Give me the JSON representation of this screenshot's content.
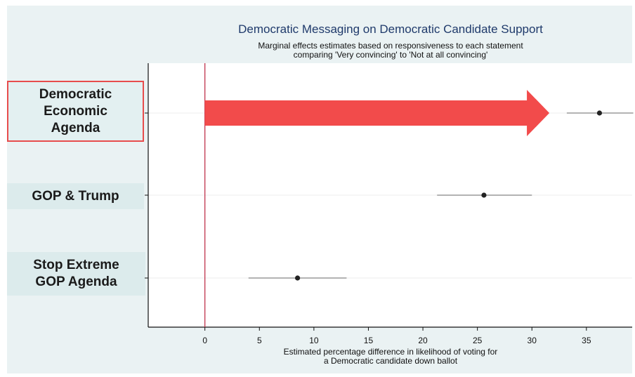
{
  "chart_data": {
    "type": "scatter",
    "title": "Democratic Messaging on Democratic Candidate Support",
    "subtitle": [
      "Marginal effects estimates based on responsiveness to each statement",
      "comparing 'Very convincing' to 'Not at all convincing'"
    ],
    "xlabel": [
      "Estimated percentage difference in likelihood of voting for",
      "a Democratic candidate down ballot"
    ],
    "xlim": [
      -5.2,
      39.2
    ],
    "xticks": [
      0,
      5,
      10,
      15,
      20,
      25,
      30,
      35
    ],
    "reference_line_x": 0,
    "grid": true,
    "categories": [
      "Democratic\nEconomic\nAgenda",
      "GOP & Trump",
      "Stop Extreme\nGOP Agenda"
    ],
    "highlighted_category": "Democratic\nEconomic\nAgenda",
    "points": [
      {
        "category": "Democratic\nEconomic\nAgenda",
        "estimate": 36.2,
        "ci_low": 33.2,
        "ci_high": 39.3
      },
      {
        "category": "GOP & Trump",
        "estimate": 25.6,
        "ci_low": 21.3,
        "ci_high": 30.0
      },
      {
        "category": "Stop Extreme\nGOP Agenda",
        "estimate": 8.5,
        "ci_low": 4.0,
        "ci_high": 13.0
      }
    ],
    "arrow": {
      "from_x": 0,
      "to_x": 31.6,
      "category": "Democratic\nEconomic\nAgenda"
    },
    "colors": {
      "background": "#eaf2f3",
      "plot_background": "#ffffff",
      "reference_line": "#c0344d",
      "arrow": "#f24b4b",
      "highlight_border": "#e74c4c",
      "point": "#222222",
      "ci_line": "#9a9a9a",
      "title": "#1f3a6b"
    }
  }
}
